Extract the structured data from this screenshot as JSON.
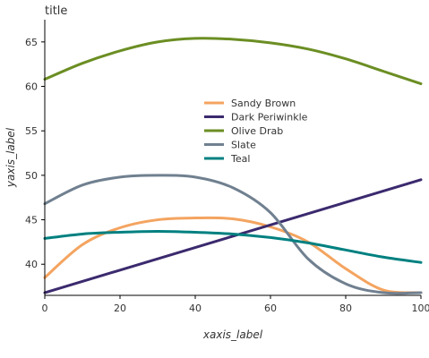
{
  "chart_data": {
    "type": "line",
    "title": "title",
    "xlabel": "xaxis_label",
    "ylabel": "yaxis_label",
    "xlim": [
      0,
      100
    ],
    "ylim": [
      36.5,
      67.5
    ],
    "xticks": [
      0,
      20,
      40,
      60,
      80,
      100
    ],
    "yticks": [
      40,
      45,
      50,
      55,
      60,
      65
    ],
    "grid": false,
    "legend": "center",
    "series": [
      {
        "name": "Sandy Brown",
        "color": "#F4A460",
        "x": [
          0,
          10,
          20,
          30,
          40,
          50,
          60,
          70,
          80,
          90,
          100
        ],
        "y": [
          38.5,
          42.2,
          44.1,
          45.0,
          45.2,
          45.1,
          44.2,
          42.5,
          39.5,
          37.1,
          36.8
        ]
      },
      {
        "name": "Dark Periwinkle",
        "color": "#3B2A6E",
        "x": [
          0,
          100
        ],
        "y": [
          36.8,
          49.5
        ]
      },
      {
        "name": "Olive Drab",
        "color": "#6B8E23",
        "x": [
          0,
          10,
          20,
          30,
          40,
          50,
          60,
          70,
          80,
          90,
          100
        ],
        "y": [
          60.8,
          62.6,
          64.0,
          65.0,
          65.4,
          65.3,
          64.9,
          64.2,
          63.1,
          61.7,
          60.3
        ]
      },
      {
        "name": "Slate",
        "color": "#708090",
        "x": [
          0,
          10,
          20,
          30,
          40,
          50,
          60,
          70,
          80,
          90,
          100
        ],
        "y": [
          46.8,
          48.9,
          49.8,
          50.0,
          49.8,
          48.6,
          45.8,
          40.6,
          37.8,
          36.8,
          36.8
        ]
      },
      {
        "name": "Teal",
        "color": "#008080",
        "x": [
          0,
          10,
          20,
          30,
          40,
          50,
          60,
          70,
          80,
          90,
          100
        ],
        "y": [
          42.9,
          43.4,
          43.6,
          43.7,
          43.6,
          43.4,
          43.0,
          42.4,
          41.6,
          40.8,
          40.2
        ]
      }
    ],
    "legend_order": [
      "Sandy Brown",
      "Dark Periwinkle",
      "Olive Drab",
      "Slate",
      "Teal"
    ]
  }
}
